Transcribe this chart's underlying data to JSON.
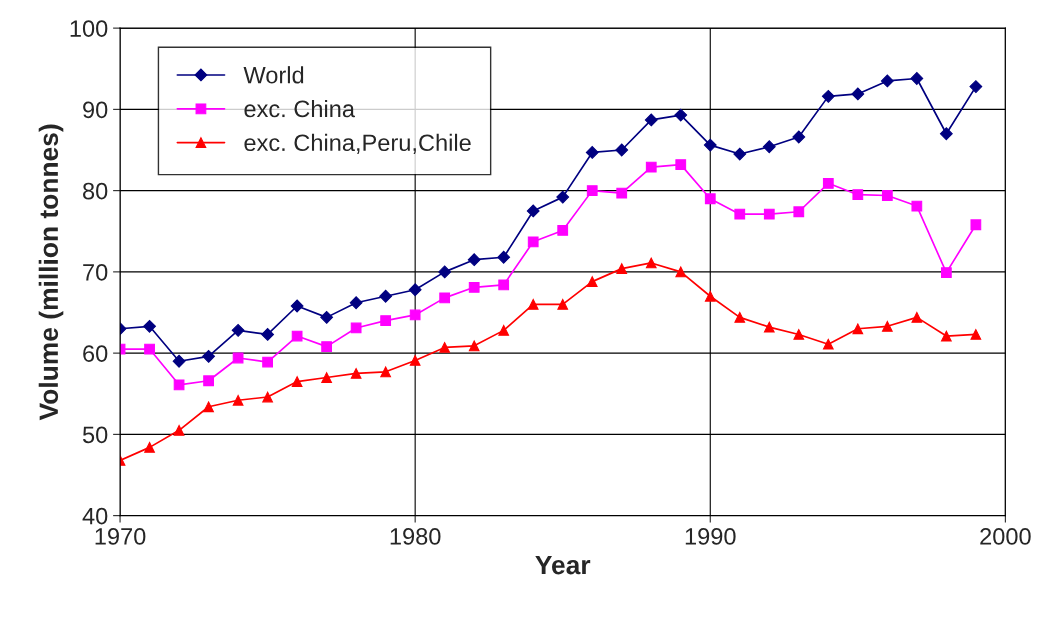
{
  "chart_data": {
    "type": "line",
    "xlabel": "Year",
    "ylabel": "Volume (million tonnes)",
    "x": [
      1970,
      1971,
      1972,
      1973,
      1974,
      1975,
      1976,
      1977,
      1978,
      1979,
      1980,
      1981,
      1982,
      1983,
      1984,
      1985,
      1986,
      1987,
      1988,
      1989,
      1990,
      1991,
      1992,
      1993,
      1994,
      1995,
      1996,
      1997,
      1998,
      1999
    ],
    "series": [
      {
        "name": "World",
        "color": "#000080",
        "marker": "diamond",
        "values": [
          63,
          63.3,
          59,
          59.6,
          62.8,
          62.3,
          65.8,
          64.4,
          66.2,
          67,
          67.8,
          70,
          71.5,
          71.8,
          77.5,
          79.2,
          84.7,
          85,
          88.7,
          89.3,
          85.6,
          84.5,
          85.4,
          86.6,
          91.6,
          91.9,
          93.5,
          93.8,
          87,
          92.8
        ]
      },
      {
        "name": "exc. China",
        "color": "#ff00ff",
        "marker": "square",
        "values": [
          60.5,
          60.5,
          56.1,
          56.6,
          59.4,
          58.9,
          62.1,
          60.8,
          63.1,
          64,
          64.7,
          66.8,
          68.1,
          68.4,
          73.7,
          75.1,
          80,
          79.7,
          82.9,
          83.2,
          79,
          77.1,
          77.1,
          77.4,
          80.9,
          79.5,
          79.4,
          78.1,
          69.9,
          75.8
        ]
      },
      {
        "name": "exc. China,Peru,Chile",
        "color": "#ff0000",
        "marker": "triangle",
        "values": [
          46.8,
          48.4,
          50.5,
          53.4,
          54.2,
          54.6,
          56.5,
          57,
          57.5,
          57.7,
          59.1,
          60.7,
          60.9,
          62.8,
          66,
          66,
          68.8,
          70.4,
          71.1,
          70,
          67,
          64.4,
          63.2,
          62.3,
          61.1,
          63,
          63.3,
          64.4,
          62.1,
          62.3
        ]
      }
    ],
    "xlim": [
      1970,
      2000
    ],
    "xticks": [
      1970,
      1980,
      1990,
      2000
    ],
    "ylim": [
      40,
      100
    ],
    "yticks": [
      40,
      50,
      60,
      70,
      80,
      90,
      100
    ],
    "grid": true,
    "legend": "top left"
  }
}
